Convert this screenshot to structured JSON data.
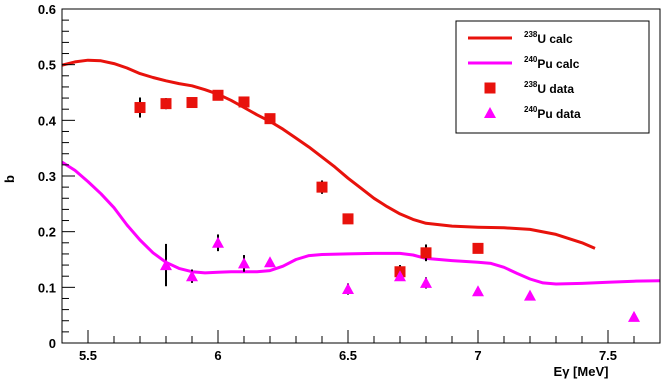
{
  "chart_data": {
    "type": "scatter",
    "title": "",
    "xlabel": "Eγ [MeV]",
    "ylabel": "b",
    "xlim": [
      5.4,
      7.7
    ],
    "ylim": [
      0,
      0.6
    ],
    "x_ticks": [
      5.5,
      6,
      6.5,
      7,
      7.5
    ],
    "x_tick_labels": [
      "5.5",
      "6",
      "6.5",
      "7",
      "7.5"
    ],
    "y_ticks": [
      0,
      0.1,
      0.2,
      0.3,
      0.4,
      0.5,
      0.6
    ],
    "y_tick_labels": [
      "0",
      "0.1",
      "0.2",
      "0.3",
      "0.4",
      "0.5",
      "0.6"
    ],
    "grid": false,
    "legend_position": "top-right",
    "series": [
      {
        "id": "u238-calc",
        "name": "238U calc",
        "name_sup": "238",
        "name_rest": "U calc",
        "kind": "line",
        "color": "#e8120c",
        "points": [
          [
            5.4,
            0.499
          ],
          [
            5.45,
            0.505
          ],
          [
            5.5,
            0.508
          ],
          [
            5.55,
            0.507
          ],
          [
            5.6,
            0.502
          ],
          [
            5.65,
            0.494
          ],
          [
            5.7,
            0.484
          ],
          [
            5.75,
            0.477
          ],
          [
            5.8,
            0.471
          ],
          [
            5.85,
            0.466
          ],
          [
            5.9,
            0.462
          ],
          [
            5.95,
            0.455
          ],
          [
            6.0,
            0.447
          ],
          [
            6.05,
            0.436
          ],
          [
            6.1,
            0.423
          ],
          [
            6.15,
            0.41
          ],
          [
            6.2,
            0.398
          ],
          [
            6.25,
            0.384
          ],
          [
            6.3,
            0.368
          ],
          [
            6.35,
            0.352
          ],
          [
            6.4,
            0.334
          ],
          [
            6.45,
            0.316
          ],
          [
            6.5,
            0.296
          ],
          [
            6.55,
            0.278
          ],
          [
            6.6,
            0.26
          ],
          [
            6.65,
            0.245
          ],
          [
            6.7,
            0.232
          ],
          [
            6.75,
            0.222
          ],
          [
            6.8,
            0.215
          ],
          [
            6.9,
            0.21
          ],
          [
            7.0,
            0.208
          ],
          [
            7.1,
            0.207
          ],
          [
            7.2,
            0.204
          ],
          [
            7.3,
            0.195
          ],
          [
            7.4,
            0.18
          ],
          [
            7.45,
            0.17
          ]
        ]
      },
      {
        "id": "pu240-calc",
        "name": "240Pu calc",
        "name_sup": "240",
        "name_rest": "Pu calc",
        "kind": "line",
        "color": "#ff00ff",
        "points": [
          [
            5.4,
            0.325
          ],
          [
            5.45,
            0.31
          ],
          [
            5.5,
            0.29
          ],
          [
            5.55,
            0.268
          ],
          [
            5.6,
            0.243
          ],
          [
            5.65,
            0.212
          ],
          [
            5.7,
            0.185
          ],
          [
            5.75,
            0.162
          ],
          [
            5.8,
            0.145
          ],
          [
            5.85,
            0.134
          ],
          [
            5.9,
            0.128
          ],
          [
            5.95,
            0.126
          ],
          [
            6.0,
            0.127
          ],
          [
            6.05,
            0.128
          ],
          [
            6.1,
            0.128
          ],
          [
            6.15,
            0.128
          ],
          [
            6.2,
            0.13
          ],
          [
            6.25,
            0.138
          ],
          [
            6.3,
            0.15
          ],
          [
            6.35,
            0.157
          ],
          [
            6.4,
            0.159
          ],
          [
            6.5,
            0.16
          ],
          [
            6.6,
            0.161
          ],
          [
            6.7,
            0.161
          ],
          [
            6.75,
            0.158
          ],
          [
            6.8,
            0.152
          ],
          [
            6.9,
            0.148
          ],
          [
            7.0,
            0.145
          ],
          [
            7.05,
            0.143
          ],
          [
            7.1,
            0.136
          ],
          [
            7.15,
            0.125
          ],
          [
            7.2,
            0.115
          ],
          [
            7.25,
            0.108
          ],
          [
            7.3,
            0.106
          ],
          [
            7.4,
            0.107
          ],
          [
            7.5,
            0.109
          ],
          [
            7.6,
            0.111
          ],
          [
            7.7,
            0.112
          ]
        ]
      },
      {
        "id": "u238-data",
        "name": "238U data",
        "name_sup": "238",
        "name_rest": "U data",
        "kind": "points",
        "marker": "square",
        "color": "#e8120c",
        "points": [
          {
            "x": 5.7,
            "y": 0.423,
            "err": 0.018
          },
          {
            "x": 5.8,
            "y": 0.43,
            "err": 0.01
          },
          {
            "x": 5.9,
            "y": 0.432,
            "err": 0.008
          },
          {
            "x": 6.0,
            "y": 0.445,
            "err": 0.006
          },
          {
            "x": 6.1,
            "y": 0.433,
            "err": 0.004
          },
          {
            "x": 6.2,
            "y": 0.403,
            "err": 0.003
          },
          {
            "x": 6.4,
            "y": 0.28,
            "err": 0.012
          },
          {
            "x": 6.5,
            "y": 0.223,
            "err": 0.003
          },
          {
            "x": 6.7,
            "y": 0.128,
            "err": 0.012
          },
          {
            "x": 6.8,
            "y": 0.162,
            "err": 0.015
          },
          {
            "x": 7.0,
            "y": 0.17,
            "err": 0.008
          }
        ]
      },
      {
        "id": "pu240-data",
        "name": "240Pu data",
        "name_sup": "240",
        "name_rest": "Pu data",
        "kind": "points",
        "marker": "triangle",
        "color": "#ff00ff",
        "points": [
          {
            "x": 5.8,
            "y": 0.14,
            "err": 0.038
          },
          {
            "x": 5.9,
            "y": 0.12,
            "err": 0.012
          },
          {
            "x": 6.0,
            "y": 0.18,
            "err": 0.015
          },
          {
            "x": 6.1,
            "y": 0.143,
            "err": 0.015
          },
          {
            "x": 6.2,
            "y": 0.145,
            "err": 0.005
          },
          {
            "x": 6.5,
            "y": 0.097,
            "err": 0.01
          },
          {
            "x": 6.7,
            "y": 0.12,
            "err": 0.006
          },
          {
            "x": 6.8,
            "y": 0.108,
            "err": 0.01
          },
          {
            "x": 7.0,
            "y": 0.093,
            "err": 0.004
          },
          {
            "x": 7.2,
            "y": 0.085,
            "err": 0.004
          },
          {
            "x": 7.6,
            "y": 0.047,
            "err": 0.003
          }
        ]
      }
    ]
  }
}
